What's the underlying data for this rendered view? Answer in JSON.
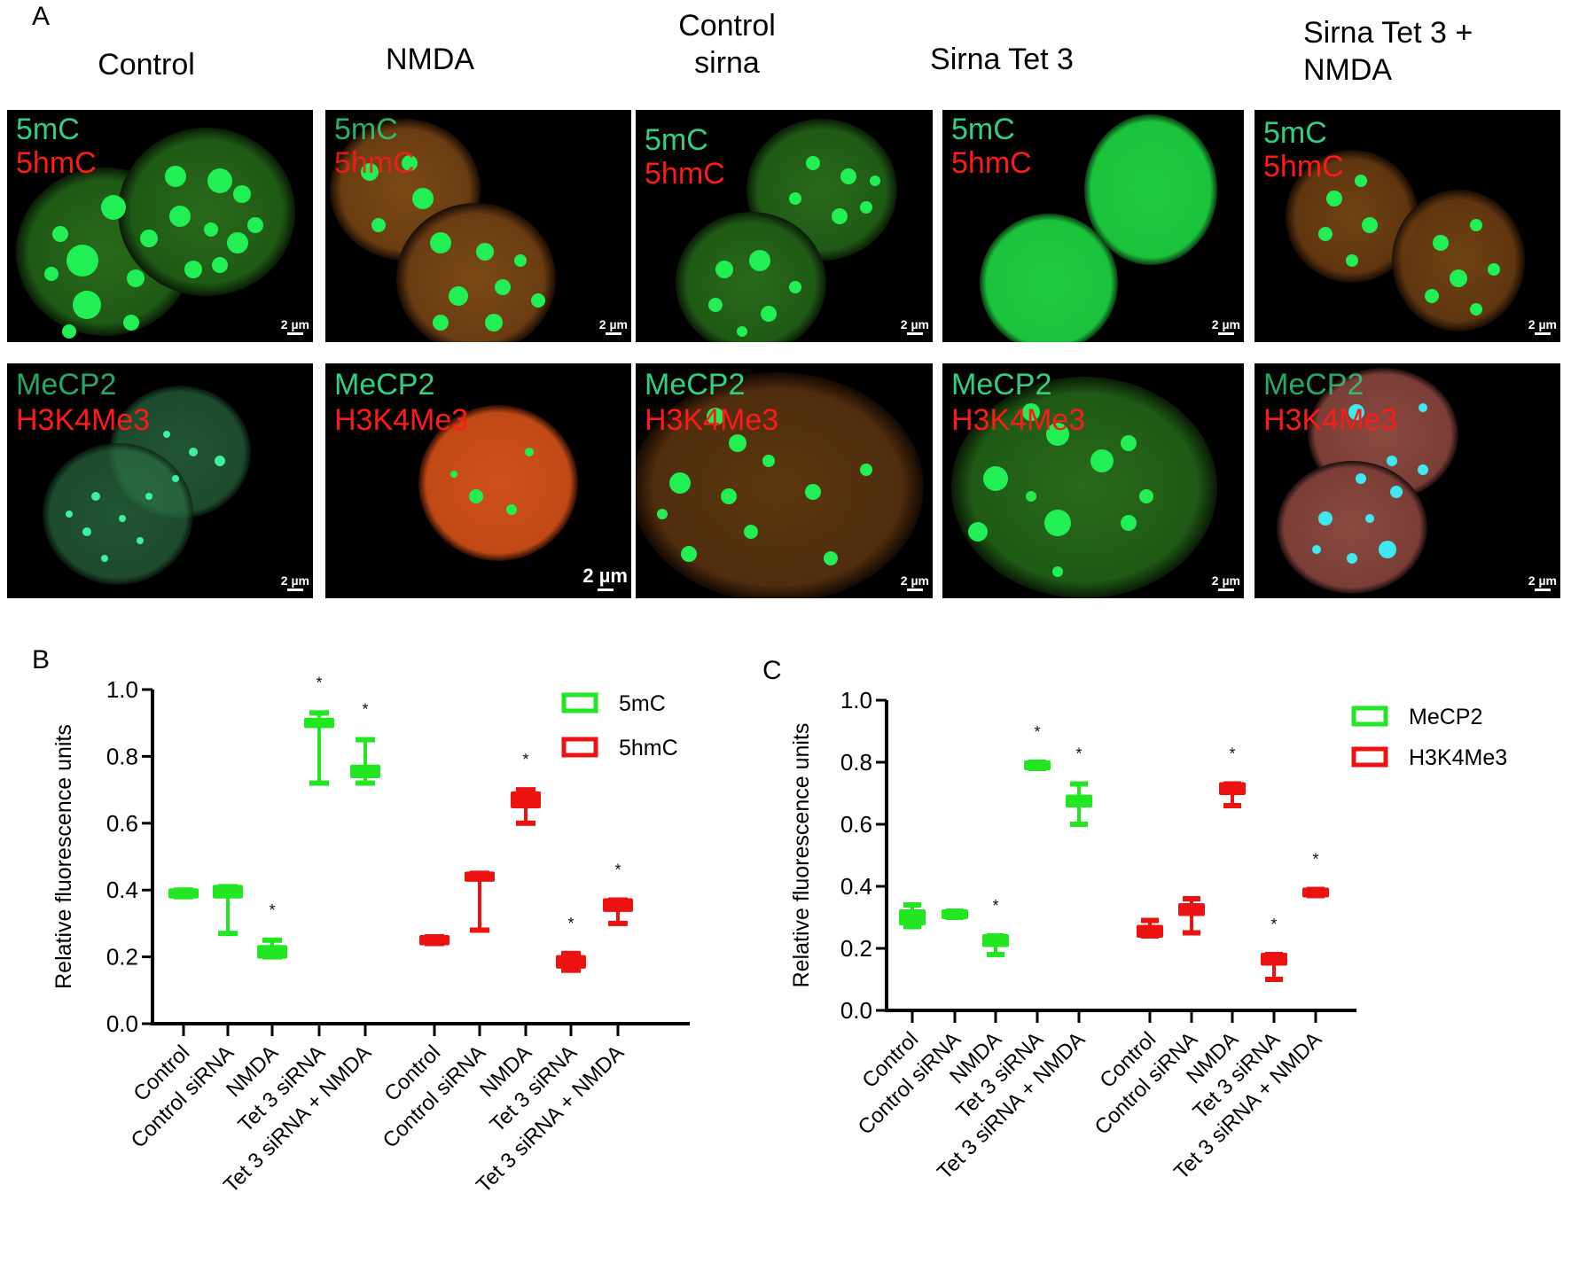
{
  "panel_a": {
    "letter": "A",
    "columns": [
      {
        "title_line1": "Control",
        "title_line2": ""
      },
      {
        "title_line1": "NMDA",
        "title_line2": ""
      },
      {
        "title_line1": "Control",
        "title_line2": "sirna"
      },
      {
        "title_line1": "Sirna Tet 3",
        "title_line2": ""
      },
      {
        "title_line1": "Sirna Tet 3 +",
        "title_line2": "NMDA"
      }
    ],
    "row1": {
      "green_label": "5mC",
      "red_label": "5hmC"
    },
    "row2": {
      "green_label": "MeCP2",
      "red_label": "H3K4Me3"
    },
    "scale_bar": "2 µm"
  },
  "panel_b": {
    "letter": "B"
  },
  "panel_c": {
    "letter": "C"
  },
  "chart_data": [
    {
      "type": "box",
      "panel": "B",
      "title": "",
      "xlabel": "",
      "ylabel": "Relative fluorescence units",
      "ylim": [
        0.0,
        1.0
      ],
      "yticks": [
        "0.0",
        "0.2",
        "0.4",
        "0.6",
        "0.8",
        "1.0"
      ],
      "categories": [
        "Control",
        "Control siRNA",
        "NMDA",
        "Tet 3 siRNA",
        "Tet 3 siRNA + NMDA"
      ],
      "legend": {
        "position": "upper right",
        "entries": [
          "5mC",
          "5hmC"
        ]
      },
      "grid": false,
      "series": [
        {
          "name": "5mC",
          "color": "#22e622",
          "boxes": [
            {
              "category": "Control",
              "min": 0.38,
              "q1": 0.38,
              "median": 0.39,
              "q3": 0.4,
              "max": 0.4,
              "significant": false
            },
            {
              "category": "Control siRNA",
              "min": 0.27,
              "q1": 0.38,
              "median": 0.4,
              "q3": 0.41,
              "max": 0.41,
              "significant": false
            },
            {
              "category": "NMDA",
              "min": 0.2,
              "q1": 0.2,
              "median": 0.21,
              "q3": 0.23,
              "max": 0.25,
              "significant": true
            },
            {
              "category": "Tet 3 siRNA",
              "min": 0.72,
              "q1": 0.89,
              "median": 0.9,
              "q3": 0.91,
              "max": 0.93,
              "significant": true
            },
            {
              "category": "Tet 3 siRNA + NMDA",
              "min": 0.72,
              "q1": 0.74,
              "median": 0.75,
              "q3": 0.77,
              "max": 0.85,
              "significant": true
            }
          ]
        },
        {
          "name": "5hmC",
          "color": "#ee1111",
          "boxes": [
            {
              "category": "Control",
              "min": 0.24,
              "q1": 0.24,
              "median": 0.25,
              "q3": 0.26,
              "max": 0.26,
              "significant": false
            },
            {
              "category": "Control siRNA",
              "min": 0.28,
              "q1": 0.43,
              "median": 0.44,
              "q3": 0.45,
              "max": 0.45,
              "significant": false
            },
            {
              "category": "NMDA",
              "min": 0.6,
              "q1": 0.65,
              "median": 0.67,
              "q3": 0.69,
              "max": 0.7,
              "significant": true
            },
            {
              "category": "Tet 3 siRNA",
              "min": 0.16,
              "q1": 0.17,
              "median": 0.18,
              "q3": 0.2,
              "max": 0.21,
              "significant": true
            },
            {
              "category": "Tet 3 siRNA + NMDA",
              "min": 0.3,
              "q1": 0.34,
              "median": 0.35,
              "q3": 0.37,
              "max": 0.37,
              "significant": true
            }
          ]
        }
      ],
      "annotations": [
        "*"
      ]
    },
    {
      "type": "box",
      "panel": "C",
      "title": "",
      "xlabel": "",
      "ylabel": "Relative fluorescence units",
      "ylim": [
        0.0,
        1.0
      ],
      "yticks": [
        "0.0",
        "0.2",
        "0.4",
        "0.6",
        "0.8",
        "1.0"
      ],
      "categories": [
        "Control",
        "Control siRNA",
        "NMDA",
        "Tet 3 siRNA",
        "Tet 3 siRNA + NMDA"
      ],
      "legend": {
        "position": "upper right",
        "entries": [
          "MeCP2",
          "H3K4Me3"
        ]
      },
      "grid": false,
      "series": [
        {
          "name": "MeCP2",
          "color": "#22e622",
          "boxes": [
            {
              "category": "Control",
              "min": 0.27,
              "q1": 0.28,
              "median": 0.3,
              "q3": 0.32,
              "max": 0.34,
              "significant": false
            },
            {
              "category": "Control siRNA",
              "min": 0.3,
              "q1": 0.3,
              "median": 0.31,
              "q3": 0.32,
              "max": 0.32,
              "significant": false
            },
            {
              "category": "NMDA",
              "min": 0.18,
              "q1": 0.21,
              "median": 0.22,
              "q3": 0.24,
              "max": 0.24,
              "significant": true
            },
            {
              "category": "Tet 3 siRNA",
              "min": 0.78,
              "q1": 0.78,
              "median": 0.79,
              "q3": 0.8,
              "max": 0.8,
              "significant": true
            },
            {
              "category": "Tet 3 siRNA + NMDA",
              "min": 0.6,
              "q1": 0.66,
              "median": 0.67,
              "q3": 0.69,
              "max": 0.73,
              "significant": true
            }
          ]
        },
        {
          "name": "H3K4Me3",
          "color": "#ee1111",
          "boxes": [
            {
              "category": "Control",
              "min": 0.24,
              "q1": 0.24,
              "median": 0.25,
              "q3": 0.27,
              "max": 0.29,
              "significant": false
            },
            {
              "category": "Control siRNA",
              "min": 0.25,
              "q1": 0.31,
              "median": 0.32,
              "q3": 0.34,
              "max": 0.36,
              "significant": false
            },
            {
              "category": "NMDA",
              "min": 0.66,
              "q1": 0.7,
              "median": 0.71,
              "q3": 0.73,
              "max": 0.73,
              "significant": true
            },
            {
              "category": "Tet 3 siRNA",
              "min": 0.1,
              "q1": 0.15,
              "median": 0.16,
              "q3": 0.18,
              "max": 0.18,
              "significant": true
            },
            {
              "category": "Tet 3 siRNA + NMDA",
              "min": 0.37,
              "q1": 0.37,
              "median": 0.38,
              "q3": 0.39,
              "max": 0.39,
              "significant": true
            }
          ]
        }
      ],
      "annotations": [
        "*"
      ]
    }
  ]
}
